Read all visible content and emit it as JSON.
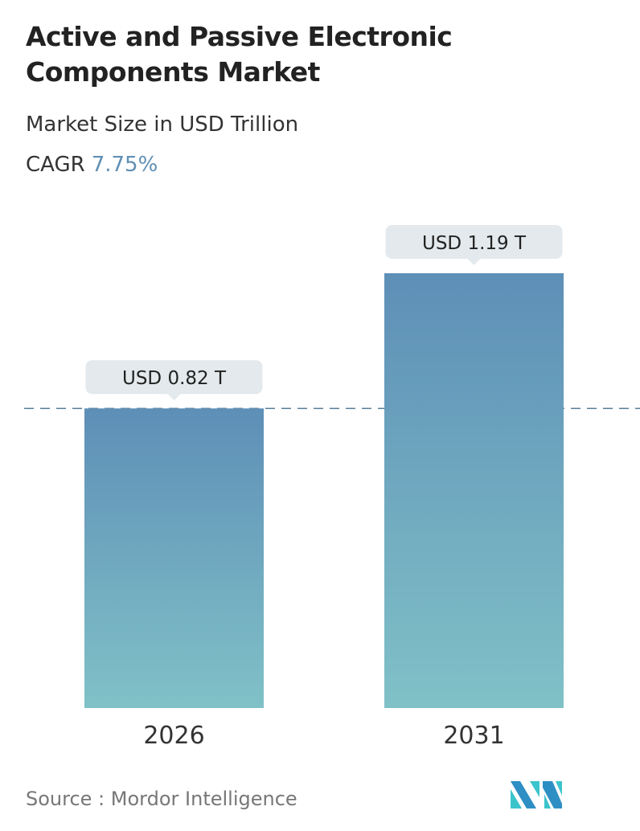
{
  "header": {
    "title": "Active and Passive Electronic Components Market",
    "subtitle": "Market Size in USD Trillion",
    "cagr_label": "CAGR",
    "cagr_value": "7.75%"
  },
  "chart_data": {
    "type": "bar",
    "categories": [
      "2026",
      "2031"
    ],
    "values": [
      0.82,
      1.19
    ],
    "data_labels": [
      "USD 0.82 T",
      "USD 1.19 T"
    ],
    "ylim": [
      0,
      1.19
    ],
    "grid": false,
    "reference_line": 0.82,
    "colors": {
      "bar_top": "#5e8fb7",
      "bar_bottom": "#80c1c7",
      "label_bg": "#e3e9ec",
      "reference_line": "#5a7f99",
      "cagr": "#5f8fb4"
    }
  },
  "footer": {
    "source": "Source :  Mordor Intelligence",
    "logo_text": "Mordor Intelligence"
  }
}
